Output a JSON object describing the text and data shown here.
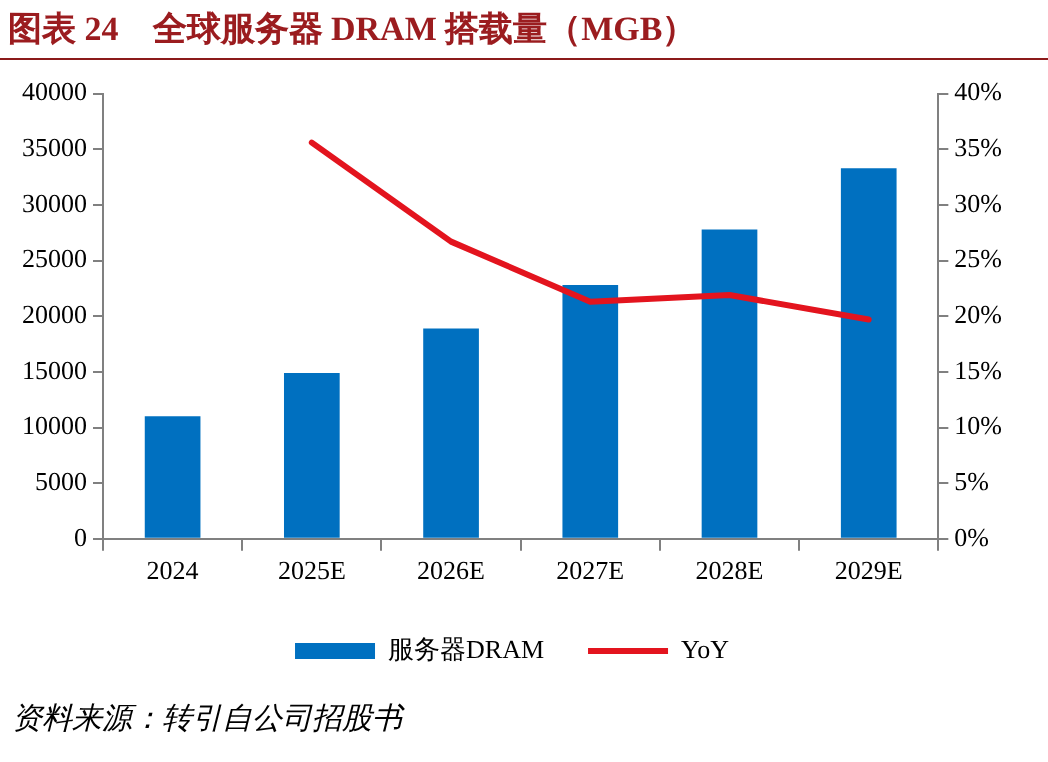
{
  "chart_data": {
    "type": "bar",
    "title": "图表 24　全球服务器 DRAM 搭载量（MGB）",
    "categories": [
      "2024",
      "2025E",
      "2026E",
      "2027E",
      "2028E",
      "2029E"
    ],
    "series": [
      {
        "name": "服务器DRAM",
        "color": "#0070c0",
        "values": [
          11000,
          14900,
          18900,
          22800,
          27800,
          33300
        ]
      },
      {
        "name": "YoY",
        "type": "line",
        "axis": "y2",
        "color": "#e3141e",
        "marker": "none",
        "values": [
          null,
          35.6,
          26.7,
          21.3,
          21.9,
          19.7
        ]
      }
    ],
    "ylim": [
      0,
      40000
    ],
    "yticks": [
      0,
      5000,
      10000,
      15000,
      20000,
      25000,
      30000,
      35000,
      40000
    ],
    "y2lim": [
      0,
      40
    ],
    "y2ticks": [
      {
        "value": 0,
        "label": "0%"
      },
      {
        "value": 5,
        "label": "5%"
      },
      {
        "value": 10,
        "label": "10%"
      },
      {
        "value": 15,
        "label": "15%"
      },
      {
        "value": 20,
        "label": "20%"
      },
      {
        "value": 25,
        "label": "25%"
      },
      {
        "value": 30,
        "label": "30%"
      },
      {
        "value": 35,
        "label": "35%"
      },
      {
        "value": 40,
        "label": "40%"
      }
    ],
    "grid": false,
    "legend": "bottom",
    "annotations": [
      "资料来源：转引自公司招股书"
    ]
  }
}
